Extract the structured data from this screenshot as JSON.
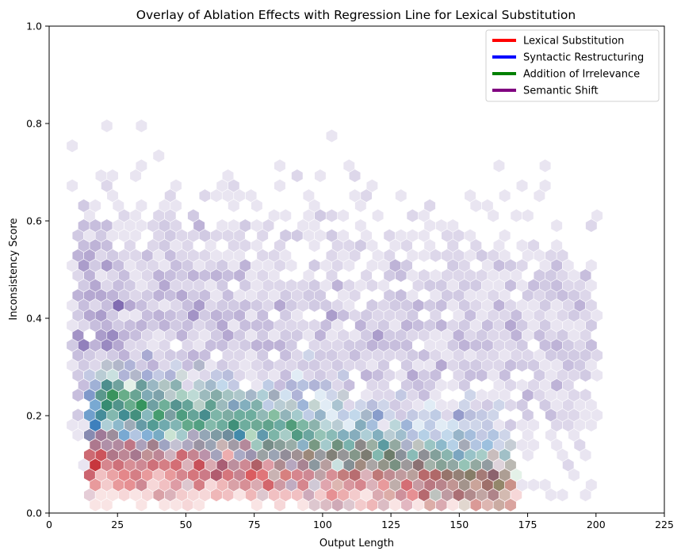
{
  "chart_data": {
    "type": "hexbin",
    "title": "Overlay of Ablation Effects with Regression Line for Lexical Substitution",
    "xlabel": "Output Length",
    "ylabel": "Inconsistency Score",
    "xlim": [
      0,
      225
    ],
    "ylim": [
      0,
      1.0
    ],
    "xticks": [
      "0",
      "25",
      "50",
      "75",
      "100",
      "125",
      "150",
      "175",
      "200",
      "225"
    ],
    "yticks": [
      "0.0",
      "0.2",
      "0.4",
      "0.6",
      "0.8",
      "1.0"
    ],
    "legend_position": "top-right",
    "grid": false,
    "series": [
      {
        "name": "Lexical Substitution",
        "color": "#ff0000",
        "cmap_dark": "#cb181d",
        "x_range": [
          15,
          170
        ],
        "trend": {
          "y_at_start": 0.1,
          "y_at_end": 0.045
        },
        "spread": 0.03
      },
      {
        "name": "Syntactic Restructuring",
        "color": "#0000ff",
        "cmap_dark": "#2171b5",
        "x_range": [
          15,
          165
        ],
        "trend": {
          "y_at_start": 0.19,
          "y_at_end": 0.11
        },
        "spread": 0.05
      },
      {
        "name": "Addition of Irrelevance",
        "color": "#008000",
        "cmap_dark": "#238b45",
        "x_range": [
          20,
          170
        ],
        "trend": {
          "y_at_start": 0.24,
          "y_at_end": 0.06
        },
        "spread": 0.03
      },
      {
        "name": "Semantic Shift",
        "color": "#800080",
        "cmap_dark": "#6a51a3",
        "x_range": [
          10,
          200
        ],
        "trend": {
          "y_at_start": 0.4,
          "y_at_end": 0.33
        },
        "spread": 0.13
      }
    ]
  }
}
